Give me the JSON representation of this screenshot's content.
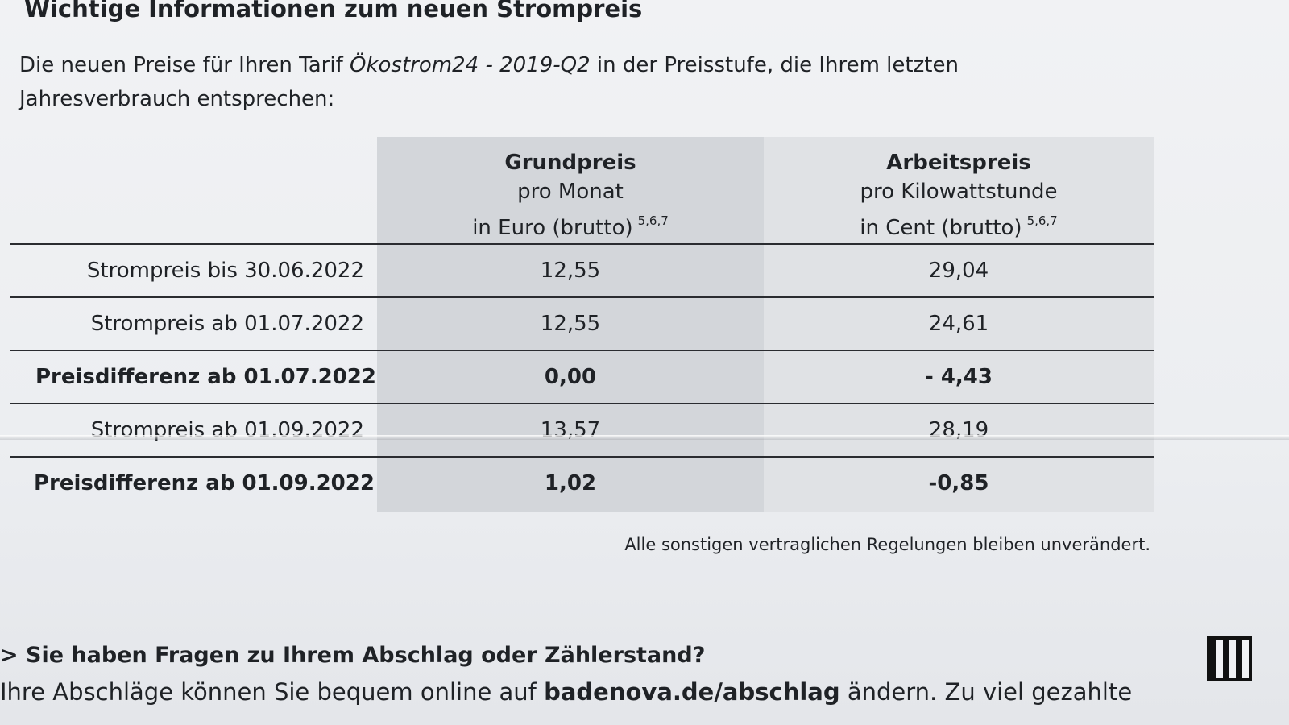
{
  "document": {
    "title": "Wichtige Informationen zum neuen Strompreis",
    "intro_prefix": "Die neuen Preise für Ihren Tarif ",
    "intro_tariff": "Ökostrom24 - 2019-Q2",
    "intro_suffix": " in der Preisstufe, die Ihrem letzten Jahresverbrauch entsprechen:"
  },
  "table": {
    "grundpreis_header": {
      "line1": "Grundpreis",
      "line2": "pro Monat",
      "line3": "in Euro (brutto)",
      "footnote": "5,6,7"
    },
    "arbeitspreis_header": {
      "line1": "Arbeitspreis",
      "line2": "pro Kilowattstunde",
      "line3": "in Cent (brutto)",
      "footnote": "5,6,7"
    },
    "rows": [
      {
        "label": "Strompreis bis 30.06.2022",
        "grundpreis": "12,55",
        "arbeitspreis": "29,04"
      },
      {
        "label": "Strompreis ab 01.07.2022",
        "grundpreis": "12,55",
        "arbeitspreis": "24,61"
      },
      {
        "label": "Preisdifferenz ab 01.07.2022",
        "grundpreis": "0,00",
        "arbeitspreis": "- 4,43"
      },
      {
        "label": "Strompreis ab 01.09.2022",
        "grundpreis": "13,57",
        "arbeitspreis": "28,19"
      },
      {
        "label": "Preisdifferenz ab 01.09.2022",
        "grundpreis": "1,02",
        "arbeitspreis": "-0,85"
      }
    ]
  },
  "note": "Alle sonstigen vertraglichen Regelungen bleiben unverändert.",
  "faq": {
    "heading": "> Sie haben Fragen zu Ihrem Abschlag oder Zählerstand?",
    "text_prefix": "Ihre Abschläge können Sie bequem online auf ",
    "link": "badenova.de/abschlag",
    "text_suffix": " ändern. Zu viel gezahlte"
  }
}
